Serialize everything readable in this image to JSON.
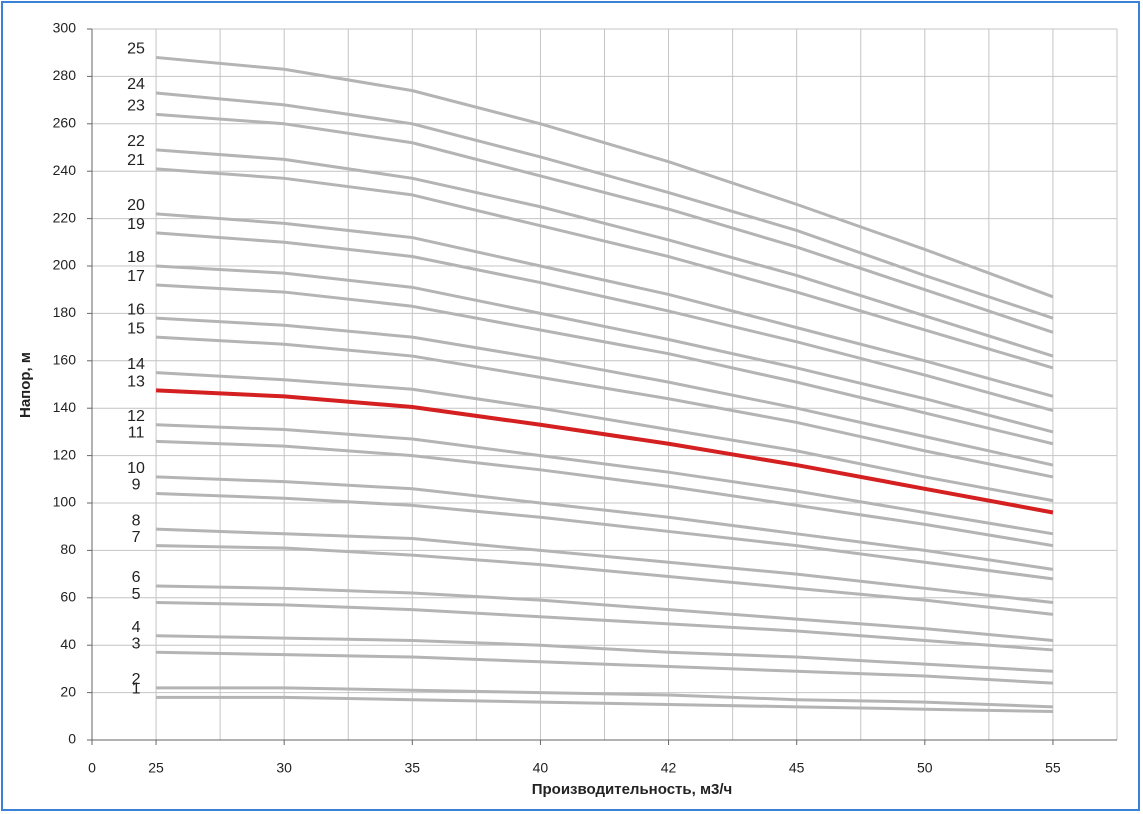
{
  "chart_data": {
    "type": "line",
    "y_label": "Напор, м",
    "x_label": "Производительность, м3/ч",
    "categories": [
      "0",
      "25",
      "30",
      "35",
      "40",
      "42",
      "45",
      "50",
      "55"
    ],
    "ylim": [
      0,
      300
    ],
    "yticks": [
      0,
      20,
      40,
      60,
      80,
      100,
      120,
      140,
      160,
      180,
      200,
      220,
      240,
      260,
      280,
      300
    ],
    "grid": true,
    "series": [
      {
        "name": "1",
        "color": "#b4b4b4",
        "values": [
          null,
          18,
          18,
          17,
          16,
          15,
          14,
          13,
          12
        ]
      },
      {
        "name": "2",
        "color": "#b4b4b4",
        "values": [
          null,
          22,
          22,
          21,
          20,
          19,
          17,
          16,
          14
        ]
      },
      {
        "name": "3",
        "color": "#b4b4b4",
        "values": [
          null,
          37,
          36,
          35,
          33,
          31,
          29,
          27,
          24
        ]
      },
      {
        "name": "4",
        "color": "#b4b4b4",
        "values": [
          null,
          44,
          43,
          42,
          40,
          37,
          35,
          32,
          29
        ]
      },
      {
        "name": "5",
        "color": "#b4b4b4",
        "values": [
          null,
          58,
          57,
          55,
          52,
          49,
          46,
          42,
          38
        ]
      },
      {
        "name": "6",
        "color": "#b4b4b4",
        "values": [
          null,
          65,
          64,
          62,
          59,
          55,
          51,
          47,
          42
        ]
      },
      {
        "name": "7",
        "color": "#b4b4b4",
        "values": [
          null,
          82,
          81,
          78,
          74,
          69,
          64,
          59,
          53
        ]
      },
      {
        "name": "8",
        "color": "#b4b4b4",
        "values": [
          null,
          89,
          87,
          85,
          80,
          75,
          70,
          64,
          58
        ]
      },
      {
        "name": "9",
        "color": "#b4b4b4",
        "values": [
          null,
          104,
          102,
          99,
          94,
          88,
          82,
          75,
          68
        ]
      },
      {
        "name": "10",
        "color": "#b4b4b4",
        "values": [
          null,
          111,
          109,
          106,
          100,
          94,
          87,
          80,
          72
        ]
      },
      {
        "name": "11",
        "color": "#b4b4b4",
        "values": [
          null,
          126,
          124,
          120,
          114,
          107,
          99,
          91,
          82
        ]
      },
      {
        "name": "12",
        "color": "#b4b4b4",
        "values": [
          null,
          133,
          131,
          127,
          120,
          113,
          105,
          96,
          87
        ]
      },
      {
        "name": "13",
        "color": "#d42020",
        "values": [
          null,
          147.5,
          145,
          140.5,
          133,
          125,
          116,
          106,
          96
        ]
      },
      {
        "name": "14",
        "color": "#b4b4b4",
        "values": [
          null,
          155,
          152,
          148,
          140,
          131,
          122,
          111,
          101
        ]
      },
      {
        "name": "15",
        "color": "#b4b4b4",
        "values": [
          null,
          170,
          167,
          162,
          153,
          144,
          134,
          122,
          111
        ]
      },
      {
        "name": "16",
        "color": "#b4b4b4",
        "values": [
          null,
          178,
          175,
          170,
          161,
          151,
          140,
          128,
          116
        ]
      },
      {
        "name": "17",
        "color": "#b4b4b4",
        "values": [
          null,
          192,
          189,
          183,
          173,
          163,
          151,
          138,
          125
        ]
      },
      {
        "name": "18",
        "color": "#b4b4b4",
        "values": [
          null,
          200,
          197,
          191,
          180,
          169,
          157,
          144,
          130
        ]
      },
      {
        "name": "19",
        "color": "#b4b4b4",
        "values": [
          null,
          214,
          210,
          204,
          193,
          181,
          168,
          154,
          139
        ]
      },
      {
        "name": "20",
        "color": "#b4b4b4",
        "values": [
          null,
          222,
          218,
          212,
          200,
          188,
          174,
          160,
          145
        ]
      },
      {
        "name": "21",
        "color": "#b4b4b4",
        "values": [
          null,
          241,
          237,
          230,
          217,
          204,
          189,
          173,
          157
        ]
      },
      {
        "name": "22",
        "color": "#b4b4b4",
        "values": [
          null,
          249,
          245,
          237,
          225,
          211,
          196,
          179,
          162
        ]
      },
      {
        "name": "23",
        "color": "#b4b4b4",
        "values": [
          null,
          264,
          260,
          252,
          238,
          224,
          208,
          190,
          172
        ]
      },
      {
        "name": "24",
        "color": "#b4b4b4",
        "values": [
          null,
          273,
          268,
          260,
          246,
          231,
          215,
          196,
          178
        ]
      },
      {
        "name": "25",
        "color": "#b4b4b4",
        "values": [
          null,
          288,
          283,
          274,
          260,
          244,
          226,
          207,
          187
        ]
      }
    ]
  }
}
